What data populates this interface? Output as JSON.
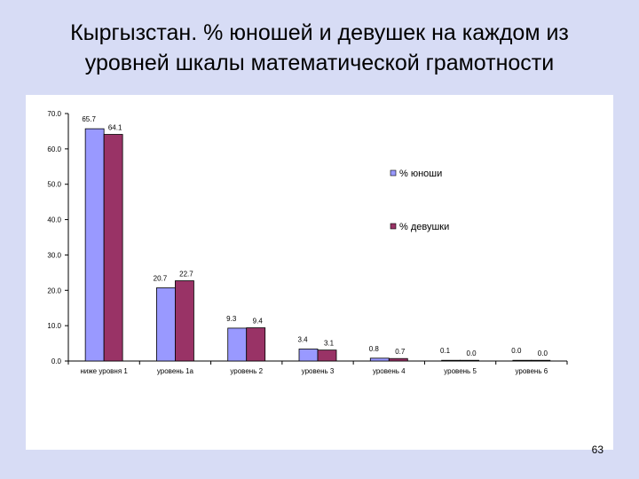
{
  "slide": {
    "title_line1": "Кыргызстан. % юношей и девушек на каждом из",
    "title_line2": "уровней шкалы математической грамотности",
    "page_number": "63"
  },
  "chart_data": {
    "type": "bar",
    "title": "",
    "xlabel": "",
    "ylabel": "",
    "ylim": [
      0,
      70
    ],
    "yticks": [
      "0.0",
      "10.0",
      "20.0",
      "30.0",
      "40.0",
      "50.0",
      "60.0",
      "70.0"
    ],
    "categories": [
      "ниже уровня 1",
      "уровень 1а",
      "уровень 2",
      "уровень 3",
      "уровень 4",
      "уровень 5",
      "уровень 6"
    ],
    "series": [
      {
        "name": "% юноши",
        "color": "#9999ff",
        "values": [
          65.7,
          20.7,
          9.3,
          3.4,
          0.8,
          0.1,
          0.0
        ],
        "labels": [
          "65.7",
          "20.7",
          "9.3",
          "3.4",
          "0.8",
          "0.1",
          "0.0"
        ]
      },
      {
        "name": "% девушки",
        "color": "#993366",
        "values": [
          64.1,
          22.7,
          9.4,
          3.1,
          0.7,
          0.0,
          0.0
        ],
        "labels": [
          "64.1",
          "22.7",
          "9.4",
          "3.1",
          "0.7",
          "0.0",
          "0.0"
        ]
      }
    ],
    "legend_position": "right",
    "grid": false
  }
}
